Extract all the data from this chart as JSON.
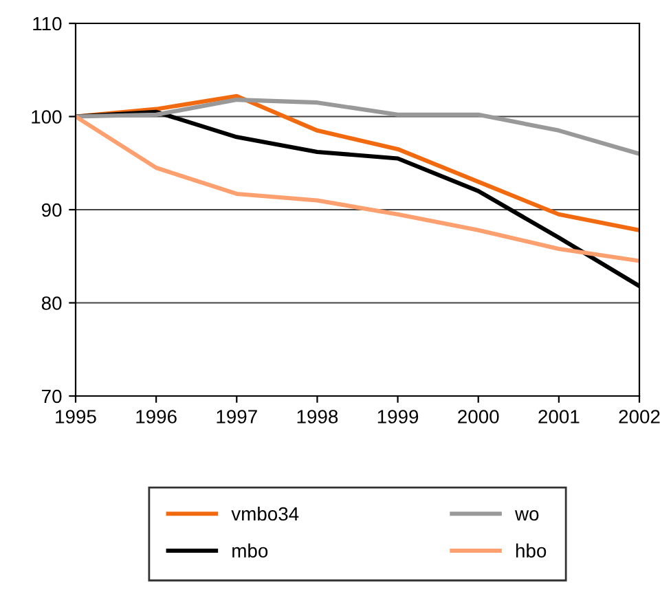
{
  "chart_data": {
    "type": "line",
    "x": [
      1995,
      1996,
      1997,
      1998,
      1999,
      2000,
      2001,
      2002
    ],
    "series": [
      {
        "name": "vmbo34",
        "color": "#f26a10",
        "values": [
          100,
          100.8,
          102.2,
          98.5,
          96.5,
          93,
          89.5,
          87.8
        ]
      },
      {
        "name": "mbo",
        "color": "#000000",
        "values": [
          100,
          100.5,
          97.8,
          96.2,
          95.5,
          92,
          87,
          81.8
        ]
      },
      {
        "name": "wo",
        "color": "#999999",
        "values": [
          100,
          100.2,
          101.8,
          101.5,
          100.2,
          100.2,
          98.5,
          96
        ]
      },
      {
        "name": "hbo",
        "color": "#fda070",
        "values": [
          100,
          94.5,
          91.7,
          91,
          89.5,
          87.8,
          85.8,
          84.5
        ]
      }
    ],
    "xlim": [
      1995,
      2002
    ],
    "xticks": [
      1995,
      1996,
      1997,
      1998,
      1999,
      2000,
      2001,
      2002
    ],
    "ylim": [
      70,
      110
    ],
    "yticks": [
      70,
      80,
      90,
      100,
      110
    ],
    "grid": "y",
    "legend": "bottom",
    "marker": "none",
    "line_style": "solid"
  }
}
